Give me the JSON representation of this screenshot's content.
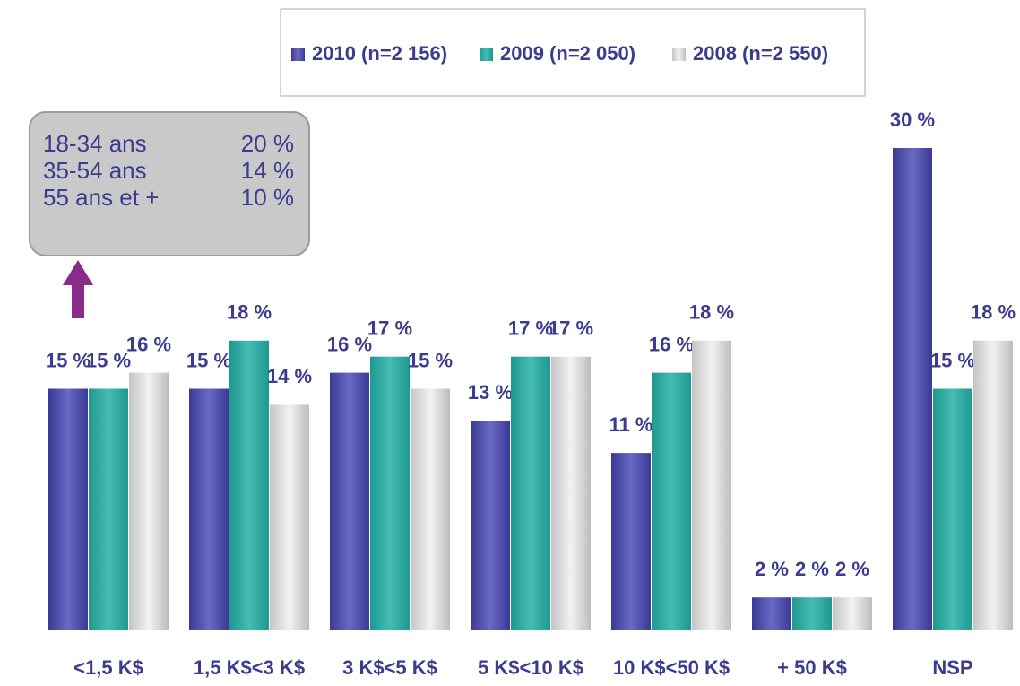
{
  "chart_data": {
    "type": "bar",
    "categories": [
      "<1,5 K$",
      "1,5 K$<3 K$",
      "3 K$<5 K$",
      "5 K$<10 K$",
      "10 K$<50 K$",
      "+ 50 K$",
      "NSP"
    ],
    "series": [
      {
        "name": "2010 (n=2 156)",
        "color": "#4b4aa8",
        "values": [
          15,
          15,
          16,
          13,
          11,
          2,
          30
        ],
        "value_labels": [
          "15 %",
          "15 %",
          "16 %",
          "13 %",
          "11 %",
          "2 %",
          "30 %"
        ]
      },
      {
        "name": "2009 (n=2 050)",
        "color": "#2aa8a0",
        "values": [
          15,
          18,
          17,
          17,
          16,
          2,
          15
        ],
        "value_labels": [
          "15 %",
          "18 %",
          "17 %",
          "17 %",
          "16 %",
          "2 %",
          "15 %"
        ]
      },
      {
        "name": "2008 (n=2 550)",
        "color": "#d4d4d4",
        "values": [
          16,
          14,
          15,
          17,
          18,
          2,
          18
        ],
        "value_labels": [
          "16 %",
          "14 %",
          "15 %",
          "17 %",
          "18 %",
          "2 %",
          "18 %"
        ]
      }
    ],
    "legend": "top",
    "annotation": {
      "rows": [
        [
          "18-34 ans",
          "20 %"
        ],
        [
          "35-54 ans",
          "14 %"
        ],
        [
          "55 ans et +",
          "10 %"
        ]
      ]
    }
  }
}
